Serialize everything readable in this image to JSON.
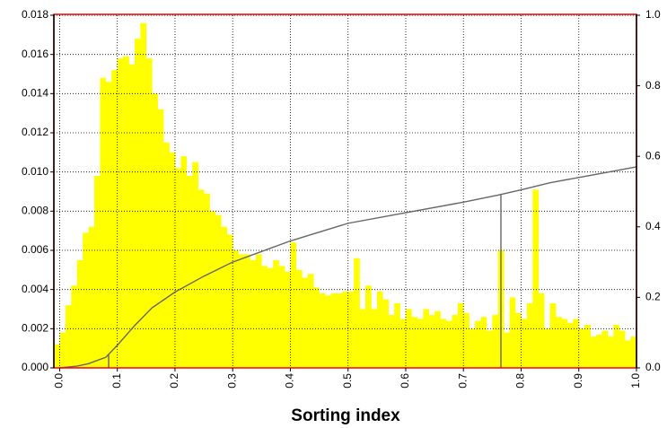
{
  "chart_data": {
    "type": "histogram",
    "xlabel": "Sorting index",
    "bins": [
      -0.01,
      0,
      0.01,
      0.02,
      0.03,
      0.04,
      0.05,
      0.06,
      0.07,
      0.08,
      0.09,
      0.1,
      0.11,
      0.12,
      0.13,
      0.14,
      0.15,
      0.16,
      0.17,
      0.18,
      0.19,
      0.2,
      0.21,
      0.22,
      0.23,
      0.24,
      0.25,
      0.26,
      0.27,
      0.28,
      0.29,
      0.3,
      0.31,
      0.32,
      0.33,
      0.34,
      0.35,
      0.36,
      0.37,
      0.38,
      0.39,
      0.4,
      0.41,
      0.42,
      0.43,
      0.44,
      0.45,
      0.46,
      0.47,
      0.48,
      0.49,
      0.5,
      0.51,
      0.52,
      0.53,
      0.54,
      0.55,
      0.56,
      0.57,
      0.58,
      0.59,
      0.6,
      0.61,
      0.62,
      0.63,
      0.64,
      0.65,
      0.66,
      0.67,
      0.68,
      0.69,
      0.7,
      0.71,
      0.72,
      0.73,
      0.74,
      0.75,
      0.76,
      0.77,
      0.78,
      0.79,
      0.8,
      0.81,
      0.82,
      0.83,
      0.84,
      0.85,
      0.86,
      0.87,
      0.88,
      0.89,
      0.9,
      0.91,
      0.92,
      0.93,
      0.94,
      0.95,
      0.96,
      0.97,
      0.98,
      0.99,
      1.0
    ],
    "values": [
      0.0012,
      0.0018,
      0.0032,
      0.0042,
      0.0055,
      0.0069,
      0.0072,
      0.0098,
      0.0148,
      0.0146,
      0.0152,
      0.0158,
      0.0159,
      0.0155,
      0.0168,
      0.0176,
      0.0158,
      0.014,
      0.0132,
      0.0115,
      0.011,
      0.0102,
      0.0108,
      0.0098,
      0.0105,
      0.0091,
      0.0089,
      0.008,
      0.0078,
      0.0072,
      0.0068,
      0.006,
      0.0058,
      0.0058,
      0.0055,
      0.0058,
      0.0052,
      0.0051,
      0.0055,
      0.0052,
      0.0049,
      0.0064,
      0.005,
      0.0046,
      0.0048,
      0.0041,
      0.0038,
      0.0037,
      0.0038,
      0.0038,
      0.0039,
      0.0039,
      0.0056,
      0.003,
      0.0042,
      0.003,
      0.0039,
      0.0035,
      0.0027,
      0.0033,
      0.0025,
      0.003,
      0.0026,
      0.0025,
      0.003,
      0.0027,
      0.0029,
      0.0025,
      0.0024,
      0.0027,
      0.0033,
      0.0028,
      0.002,
      0.0024,
      0.0026,
      0.0019,
      0.0027,
      0.006,
      0.0018,
      0.0036,
      0.0028,
      0.0025,
      0.0033,
      0.0091,
      0.0038,
      0.002,
      0.0033,
      0.0026,
      0.0025,
      0.0023,
      0.0025,
      0.002,
      0.0022,
      0.0016,
      0.0017,
      0.0019,
      0.0016,
      0.0022,
      0.0019,
      0.0014,
      0.0016
    ],
    "color": "#ffff00",
    "series": [
      {
        "type": "line",
        "axis": "y2",
        "color": "#666666",
        "x": [
          0.0,
          0.03,
          0.05,
          0.08,
          0.1,
          0.13,
          0.16,
          0.2,
          0.25,
          0.3,
          0.35,
          0.4,
          0.45,
          0.5,
          0.6,
          0.7,
          0.76,
          0.8,
          0.85,
          0.9,
          0.95,
          1.0
        ],
        "values": [
          0.0,
          0.005,
          0.012,
          0.03,
          0.064,
          0.12,
          0.17,
          0.215,
          0.26,
          0.3,
          0.33,
          0.36,
          0.385,
          0.41,
          0.44,
          0.47,
          0.49,
          0.505,
          0.525,
          0.54,
          0.555,
          0.57
        ]
      }
    ],
    "markers": [
      0.085,
      0.765
    ],
    "xlim": [
      -0.01,
      1.0
    ],
    "xticks": [
      {
        "value": 0.0,
        "label": "0.0"
      },
      0.1,
      0.2,
      0.3,
      0.4,
      0.5,
      0.6,
      0.7,
      0.8,
      0.9,
      {
        "value": 1.0,
        "label": "1.0"
      }
    ],
    "ylim": [
      0,
      0.018
    ],
    "yticks": [
      {
        "value": 0,
        "label": "0.000"
      },
      {
        "value": 0.002,
        "label": "0.002"
      },
      {
        "value": 0.004,
        "label": "0.004"
      },
      {
        "value": 0.006,
        "label": "0.006"
      },
      {
        "value": 0.008,
        "label": "0.008"
      },
      {
        "value": 0.01,
        "label": "0.010"
      },
      {
        "value": 0.012,
        "label": "0.012"
      },
      {
        "value": 0.014,
        "label": "0.014"
      },
      {
        "value": 0.016,
        "label": "0.016"
      },
      {
        "value": 0.018,
        "label": "0.018"
      }
    ],
    "y2lim": [
      0,
      1
    ],
    "y2ticks": [
      {
        "value": 0,
        "label": "0.0"
      },
      0.2,
      0.4,
      0.6,
      0.8,
      {
        "value": 1,
        "label": "1.0"
      }
    ],
    "grid": true
  }
}
